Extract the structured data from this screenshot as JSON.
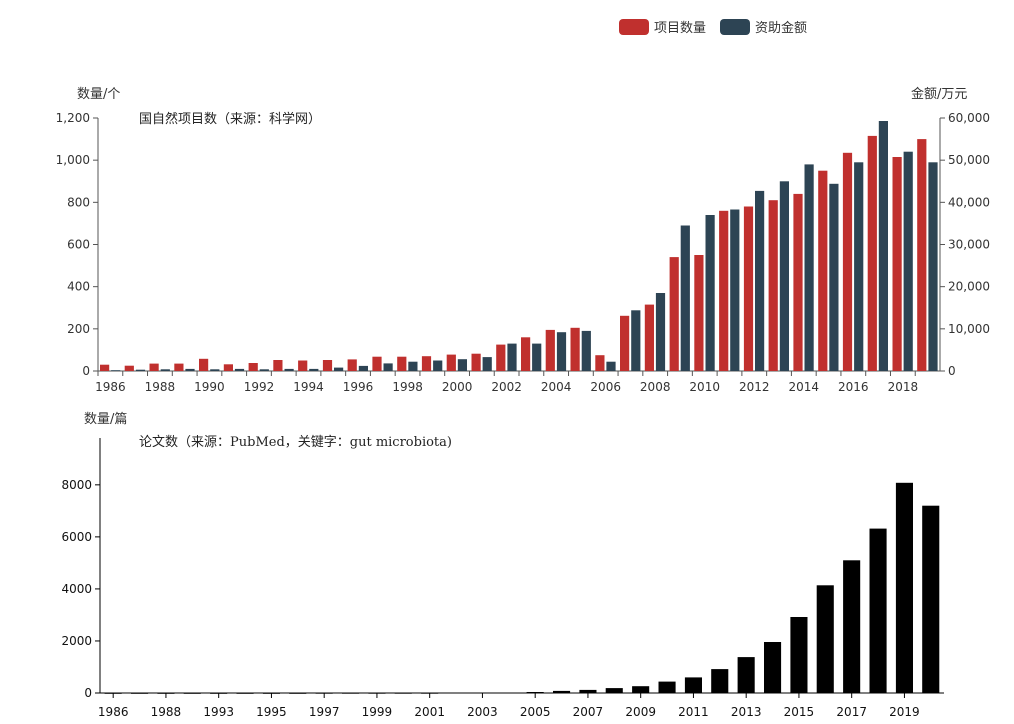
{
  "colors": {
    "projects": "#c0302e",
    "funding": "#2d4454",
    "papers": "#000000",
    "axis": "#333333"
  },
  "legend": {
    "projects_label": "项目数量",
    "funding_label": "资助金额"
  },
  "chart_data": [
    {
      "type": "bar",
      "title": "国自然项目数（来源：科学网）",
      "ylabel_left": "数量/个",
      "ylabel_right": "金额/万元",
      "categories": [
        "1986",
        "1987",
        "1988",
        "1989",
        "1990",
        "1991",
        "1992",
        "1993",
        "1994",
        "1995",
        "1996",
        "1997",
        "1998",
        "1999",
        "2000",
        "2001",
        "2002",
        "2003",
        "2004",
        "2005",
        "2006",
        "2007",
        "2008",
        "2009",
        "2010",
        "2011",
        "2012",
        "2013",
        "2014",
        "2015",
        "2016",
        "2017",
        "2018",
        "2019"
      ],
      "xticks": [
        "1986",
        "1988",
        "1990",
        "1992",
        "1994",
        "1996",
        "1998",
        "2000",
        "2002",
        "2004",
        "2006",
        "2008",
        "2010",
        "2012",
        "2014",
        "2016",
        "2018"
      ],
      "ylim_left": [
        0,
        1200
      ],
      "yticks_left": [
        "0",
        "200",
        "400",
        "600",
        "800",
        "1,000",
        "1,200"
      ],
      "ylim_right": [
        0,
        60000
      ],
      "yticks_right": [
        "0",
        "10,000",
        "20,000",
        "30,000",
        "40,000",
        "50,000",
        "60,000"
      ],
      "series": [
        {
          "name": "项目数量",
          "axis": "left",
          "values": [
            30,
            25,
            35,
            35,
            58,
            32,
            38,
            52,
            50,
            52,
            55,
            68,
            68,
            70,
            78,
            82,
            125,
            160,
            195,
            205,
            75,
            262,
            315,
            540,
            550,
            760,
            780,
            810,
            840,
            950,
            1035,
            1115,
            1015,
            1100
          ]
        },
        {
          "name": "资助金额",
          "axis": "right",
          "values": [
            200,
            300,
            400,
            500,
            400,
            500,
            400,
            500,
            500,
            800,
            1200,
            1800,
            2200,
            2500,
            2800,
            3300,
            6500,
            6500,
            9200,
            9500,
            2200,
            14400,
            18500,
            34500,
            37000,
            38300,
            42700,
            45000,
            49000,
            44400,
            49500,
            59300,
            52000,
            49500
          ]
        }
      ]
    },
    {
      "type": "bar",
      "title": "论文数（来源：PubMed，关键字：gut microbiota)",
      "ylabel": "数量/篇",
      "categories": [
        "1986",
        "1987",
        "1988",
        "1992",
        "1993",
        "1994",
        "1995",
        "1996",
        "1997",
        "1998",
        "1999",
        "2000",
        "2001",
        "2002",
        "2003",
        "2004",
        "2005",
        "2006",
        "2007",
        "2008",
        "2009",
        "2010",
        "2011",
        "2012",
        "2013",
        "2014",
        "2015",
        "2016",
        "2017",
        "2018",
        "2019",
        "2020"
      ],
      "xticks": [
        "1986",
        "1988",
        "1993",
        "1995",
        "1997",
        "1999",
        "2001",
        "2003",
        "2005",
        "2007",
        "2009",
        "2011",
        "2013",
        "2015",
        "2017",
        "2019"
      ],
      "ylim": [
        0,
        9800
      ],
      "yticks": [
        "0",
        "2000",
        "4000",
        "6000",
        "8000"
      ],
      "series": [
        {
          "name": "论文数",
          "values": [
            1,
            1,
            1,
            1,
            1,
            1,
            1,
            1,
            2,
            2,
            3,
            4,
            5,
            10,
            14,
            20,
            40,
            80,
            120,
            190,
            260,
            440,
            600,
            920,
            1380,
            1960,
            2920,
            4140,
            5100,
            6320,
            8080,
            7200
          ]
        }
      ]
    }
  ]
}
